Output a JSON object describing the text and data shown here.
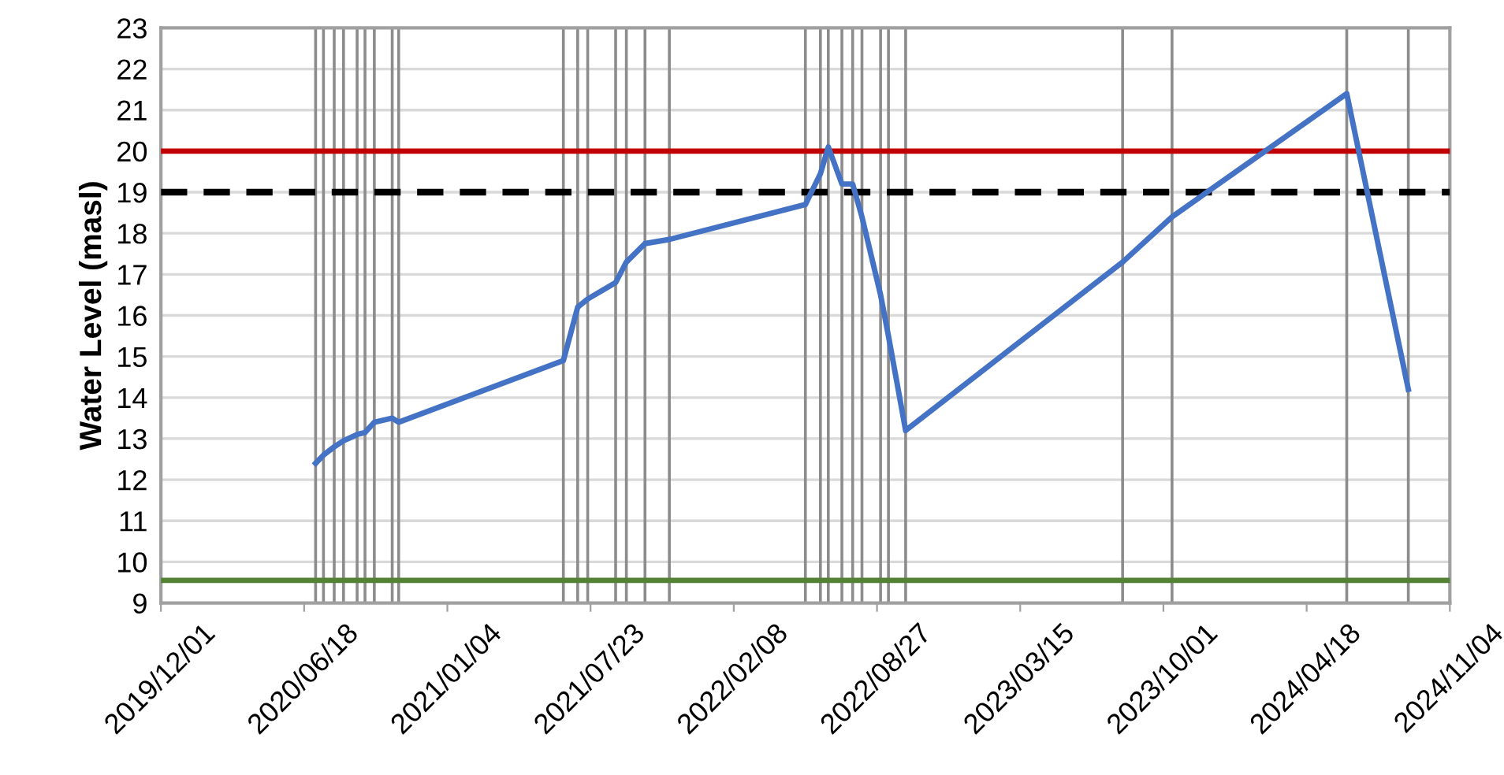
{
  "chart_data": {
    "type": "line",
    "ylabel": "Water Level (masl)",
    "x": [
      "2020-07-04",
      "2020-07-15",
      "2020-07-30",
      "2020-08-12",
      "2020-08-31",
      "2020-09-11",
      "2020-09-24",
      "2020-10-19",
      "2020-10-28",
      "2021-06-15",
      "2021-07-05",
      "2021-07-19",
      "2021-08-27",
      "2021-09-11",
      "2021-10-07",
      "2021-11-10",
      "2022-05-19",
      "2022-06-09",
      "2022-06-20",
      "2022-07-09",
      "2022-07-24",
      "2022-08-06",
      "2022-09-01",
      "2022-09-12",
      "2022-10-06",
      "2023-08-05",
      "2023-10-13",
      "2024-06-13",
      "2024-09-07"
    ],
    "series": [
      {
        "color": "#4472c4",
        "values": [
          12.4,
          12.6,
          12.8,
          12.95,
          13.1,
          13.15,
          13.4,
          13.5,
          13.4,
          14.9,
          16.2,
          16.4,
          16.8,
          17.3,
          17.75,
          17.85,
          18.7,
          19.45,
          20.1,
          19.2,
          19.2,
          18.4,
          16.5,
          15.5,
          13.2,
          17.3,
          18.4,
          21.4,
          14.2
        ]
      }
    ],
    "xlim": [
      "2019-12-01",
      "2024-11-04"
    ],
    "xticks": [
      {
        "value": "2019-12-01",
        "label": "2019/12/01"
      },
      {
        "value": "2020-06-18",
        "label": "2020/06/18"
      },
      {
        "value": "2021-01-04",
        "label": "2021/01/04"
      },
      {
        "value": "2021-07-23",
        "label": "2021/07/23"
      },
      {
        "value": "2022-02-08",
        "label": "2022/02/08"
      },
      {
        "value": "2022-08-27",
        "label": "2022/08/27"
      },
      {
        "value": "2023-03-15",
        "label": "2023/03/15"
      },
      {
        "value": "2023-10-01",
        "label": "2023/10/01"
      },
      {
        "value": "2024-04-18",
        "label": "2024/04/18"
      },
      {
        "value": "2024-11-04",
        "label": "2024/11/04"
      }
    ],
    "ylim": [
      9,
      23
    ],
    "yticks": [
      9,
      10,
      11,
      12,
      13,
      14,
      15,
      16,
      17,
      18,
      19,
      20,
      21,
      22,
      23
    ],
    "grid": "y",
    "marker": "none",
    "line_style": "solid",
    "legend": false,
    "ref_lines": [
      {
        "axis": "y",
        "value": 20,
        "color": "#c00000",
        "line_style": "solid"
      },
      {
        "axis": "y",
        "value": 19,
        "color": "#000000",
        "line_style": "dashed"
      },
      {
        "axis": "y",
        "value": 9.55,
        "color": "#548235",
        "line_style": "solid"
      },
      {
        "axis": "x",
        "value": "2020-07-04",
        "color": "#8c8c8c"
      },
      {
        "axis": "x",
        "value": "2020-07-15",
        "color": "#8c8c8c"
      },
      {
        "axis": "x",
        "value": "2020-07-30",
        "color": "#8c8c8c"
      },
      {
        "axis": "x",
        "value": "2020-08-12",
        "color": "#8c8c8c"
      },
      {
        "axis": "x",
        "value": "2020-08-31",
        "color": "#8c8c8c"
      },
      {
        "axis": "x",
        "value": "2020-09-11",
        "color": "#8c8c8c"
      },
      {
        "axis": "x",
        "value": "2020-09-24",
        "color": "#8c8c8c"
      },
      {
        "axis": "x",
        "value": "2020-10-19",
        "color": "#8c8c8c"
      },
      {
        "axis": "x",
        "value": "2020-10-28",
        "color": "#8c8c8c"
      },
      {
        "axis": "x",
        "value": "2021-06-15",
        "color": "#8c8c8c"
      },
      {
        "axis": "x",
        "value": "2021-07-05",
        "color": "#8c8c8c"
      },
      {
        "axis": "x",
        "value": "2021-07-19",
        "color": "#8c8c8c"
      },
      {
        "axis": "x",
        "value": "2021-08-27",
        "color": "#8c8c8c"
      },
      {
        "axis": "x",
        "value": "2021-09-11",
        "color": "#8c8c8c"
      },
      {
        "axis": "x",
        "value": "2021-10-07",
        "color": "#8c8c8c"
      },
      {
        "axis": "x",
        "value": "2021-11-10",
        "color": "#8c8c8c"
      },
      {
        "axis": "x",
        "value": "2022-05-19",
        "color": "#8c8c8c"
      },
      {
        "axis": "x",
        "value": "2022-06-09",
        "color": "#8c8c8c"
      },
      {
        "axis": "x",
        "value": "2022-06-20",
        "color": "#8c8c8c"
      },
      {
        "axis": "x",
        "value": "2022-07-09",
        "color": "#8c8c8c"
      },
      {
        "axis": "x",
        "value": "2022-07-24",
        "color": "#8c8c8c"
      },
      {
        "axis": "x",
        "value": "2022-08-06",
        "color": "#8c8c8c"
      },
      {
        "axis": "x",
        "value": "2022-09-01",
        "color": "#8c8c8c"
      },
      {
        "axis": "x",
        "value": "2022-09-12",
        "color": "#8c8c8c"
      },
      {
        "axis": "x",
        "value": "2022-10-06",
        "color": "#8c8c8c"
      },
      {
        "axis": "x",
        "value": "2023-08-05",
        "color": "#8c8c8c"
      },
      {
        "axis": "x",
        "value": "2023-10-13",
        "color": "#8c8c8c"
      },
      {
        "axis": "x",
        "value": "2024-06-13",
        "color": "#8c8c8c"
      },
      {
        "axis": "x",
        "value": "2024-09-07",
        "color": "#8c8c8c"
      }
    ]
  }
}
